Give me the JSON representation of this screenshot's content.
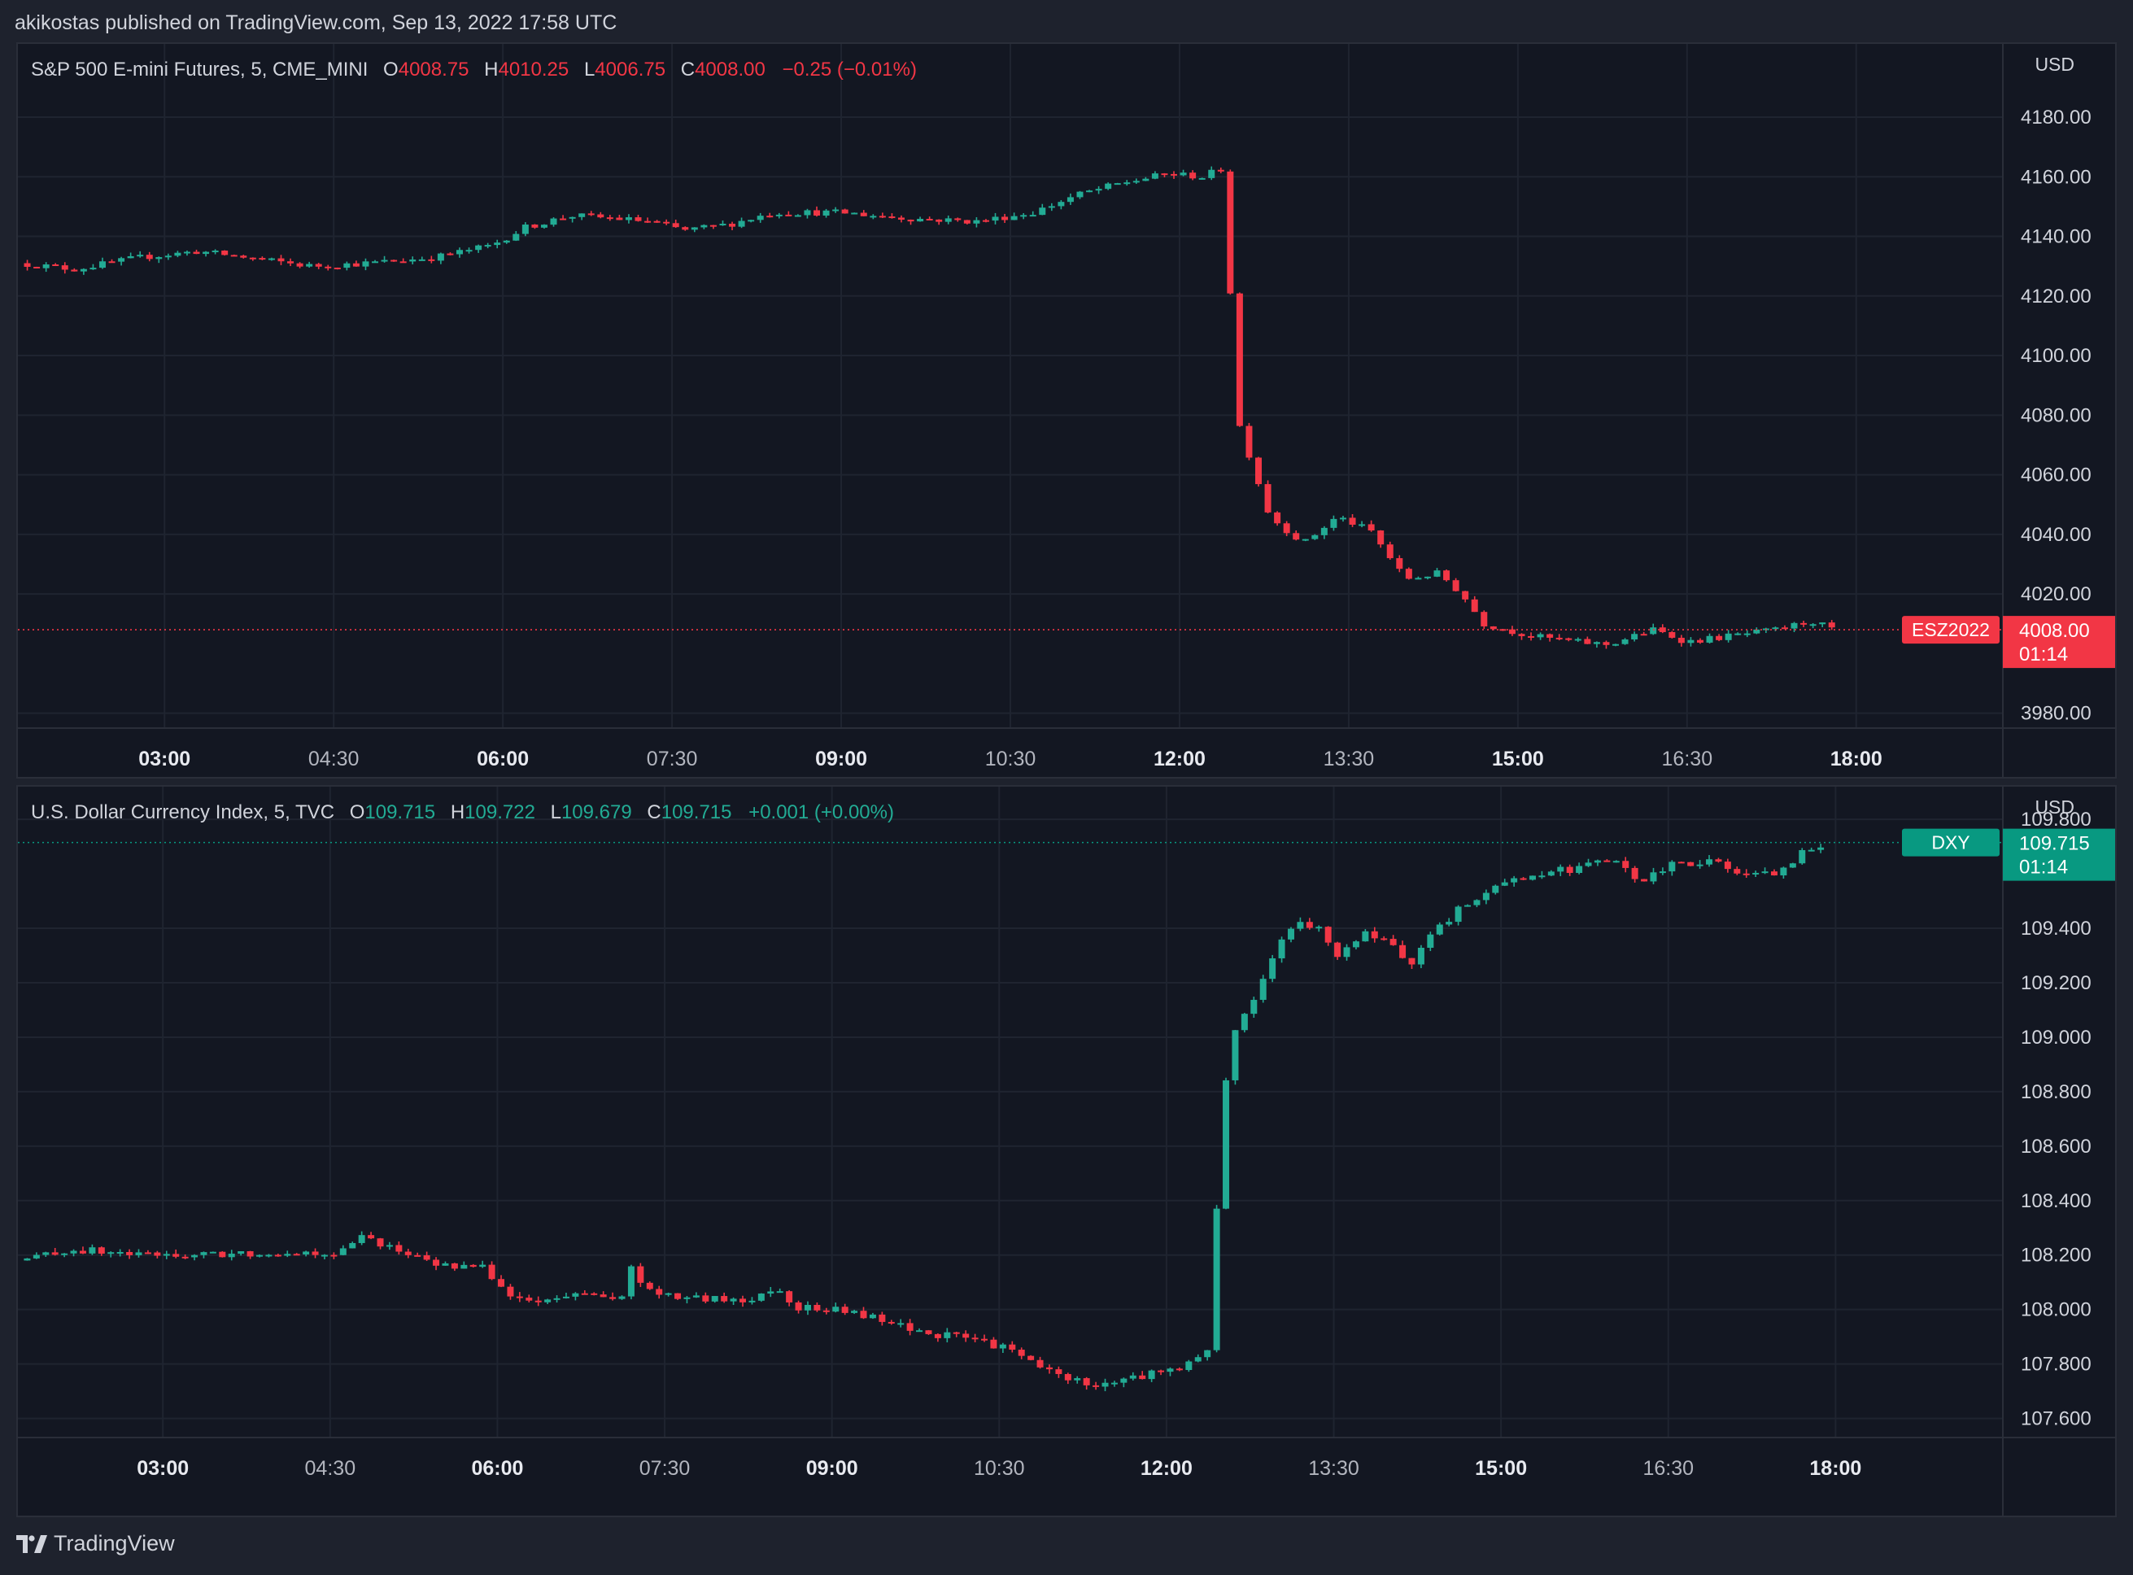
{
  "header": {
    "published": "akikostas published on TradingView.com, Sep 13, 2022 17:58 UTC"
  },
  "footer": {
    "brand": "TradingView"
  },
  "colors": {
    "up": "#22ab94",
    "down": "#f23645",
    "background": "#131722",
    "grid": "#1f2430",
    "text": "#d1d4dc"
  },
  "chart_data": [
    {
      "type": "candlestick",
      "symbol_desc": "S&P 500 E-mini Futures, 5, CME_MINI",
      "ohlc": {
        "o_label": "O",
        "o": "4008.75",
        "h_label": "H",
        "h": "4010.25",
        "l_label": "L",
        "l": "4006.75",
        "c_label": "C",
        "c": "4008.00",
        "change": "−0.25 (−0.01%)",
        "direction": "down"
      },
      "currency": "USD",
      "ylim": [
        3975,
        4186
      ],
      "y_ticks": [
        "4180.00",
        "4160.00",
        "4140.00",
        "4120.00",
        "4100.00",
        "4080.00",
        "4060.00",
        "4040.00",
        "4020.00",
        "3980.00"
      ],
      "x_ticks": [
        {
          "label": "03:00",
          "bold": true
        },
        {
          "label": "04:30",
          "bold": false
        },
        {
          "label": "06:00",
          "bold": true
        },
        {
          "label": "07:30",
          "bold": false
        },
        {
          "label": "09:00",
          "bold": true
        },
        {
          "label": "10:30",
          "bold": false
        },
        {
          "label": "12:00",
          "bold": true
        },
        {
          "label": "13:30",
          "bold": false
        },
        {
          "label": "15:00",
          "bold": true
        },
        {
          "label": "16:30",
          "bold": false
        },
        {
          "label": "18:00",
          "bold": true
        }
      ],
      "time_range_hours": [
        1.7,
        19.3
      ],
      "last_price": "4008.00",
      "last_price_value": 4008,
      "countdown": "01:14",
      "ticker_tag": "ESZ2022",
      "tag_color": "#f23645",
      "anchors": [
        [
          1.7,
          4131
        ],
        [
          2.2,
          4129
        ],
        [
          2.8,
          4133
        ],
        [
          3.3,
          4135
        ],
        [
          3.9,
          4132
        ],
        [
          4.3,
          4130
        ],
        [
          4.8,
          4131
        ],
        [
          5.4,
          4133
        ],
        [
          5.9,
          4137
        ],
        [
          6.2,
          4143
        ],
        [
          6.6,
          4147
        ],
        [
          7.0,
          4146
        ],
        [
          7.3,
          4145
        ],
        [
          7.6,
          4142
        ],
        [
          8.0,
          4144
        ],
        [
          8.4,
          4148
        ],
        [
          9.0,
          4148
        ],
        [
          9.6,
          4146
        ],
        [
          10.2,
          4145
        ],
        [
          10.7,
          4148
        ],
        [
          11.1,
          4154
        ],
        [
          11.5,
          4158
        ],
        [
          11.9,
          4161
        ],
        [
          12.2,
          4160
        ],
        [
          12.4,
          4163
        ],
        [
          12.5,
          4080
        ],
        [
          12.65,
          4063
        ],
        [
          12.8,
          4046
        ],
        [
          13.1,
          4037
        ],
        [
          13.4,
          4046
        ],
        [
          13.7,
          4041
        ],
        [
          14.0,
          4025
        ],
        [
          14.3,
          4027
        ],
        [
          14.5,
          4020
        ],
        [
          14.7,
          4010
        ],
        [
          15.1,
          4006
        ],
        [
          15.5,
          4004
        ],
        [
          15.8,
          4003
        ],
        [
          16.2,
          4008
        ],
        [
          16.5,
          4004
        ],
        [
          16.9,
          4006
        ],
        [
          17.3,
          4008
        ],
        [
          17.6,
          4011
        ],
        [
          17.8,
          4008
        ]
      ]
    },
    {
      "type": "candlestick",
      "symbol_desc": "U.S. Dollar Currency Index, 5, TVC",
      "ohlc": {
        "o_label": "O",
        "o": "109.715",
        "h_label": "H",
        "h": "109.722",
        "l_label": "L",
        "l": "109.679",
        "c_label": "C",
        "c": "109.715",
        "change": "+0.001 (+0.00%)",
        "direction": "up"
      },
      "currency": "USD",
      "ylim": [
        107.53,
        109.92
      ],
      "y_ticks": [
        "109.800",
        "109.400",
        "109.200",
        "109.000",
        "108.800",
        "108.600",
        "108.400",
        "108.200",
        "108.000",
        "107.800",
        "107.600"
      ],
      "x_ticks": [
        {
          "label": "03:00",
          "bold": true
        },
        {
          "label": "04:30",
          "bold": false
        },
        {
          "label": "06:00",
          "bold": true
        },
        {
          "label": "07:30",
          "bold": false
        },
        {
          "label": "09:00",
          "bold": true
        },
        {
          "label": "10:30",
          "bold": false
        },
        {
          "label": "12:00",
          "bold": true
        },
        {
          "label": "13:30",
          "bold": false
        },
        {
          "label": "15:00",
          "bold": true
        },
        {
          "label": "16:30",
          "bold": false
        },
        {
          "label": "18:00",
          "bold": true
        }
      ],
      "time_range_hours": [
        1.7,
        19.5
      ],
      "last_price": "109.715",
      "last_price_value": 109.715,
      "countdown": "01:14",
      "ticker_tag": "DXY",
      "tag_color": "#089981",
      "anchors": [
        [
          1.7,
          108.18
        ],
        [
          2.2,
          108.22
        ],
        [
          2.8,
          108.2
        ],
        [
          3.4,
          108.2
        ],
        [
          4.0,
          108.21
        ],
        [
          4.6,
          108.21
        ],
        [
          4.8,
          108.27
        ],
        [
          5.1,
          108.22
        ],
        [
          5.4,
          108.17
        ],
        [
          5.9,
          108.15
        ],
        [
          6.1,
          108.05
        ],
        [
          6.4,
          108.02
        ],
        [
          6.8,
          108.07
        ],
        [
          7.1,
          108.02
        ],
        [
          7.2,
          108.15
        ],
        [
          7.4,
          108.05
        ],
        [
          7.8,
          108.04
        ],
        [
          8.2,
          108.03
        ],
        [
          8.5,
          108.08
        ],
        [
          8.7,
          108.01
        ],
        [
          9.2,
          107.99
        ],
        [
          9.5,
          107.95
        ],
        [
          9.9,
          107.91
        ],
        [
          10.3,
          107.89
        ],
        [
          10.6,
          107.85
        ],
        [
          11.0,
          107.76
        ],
        [
          11.4,
          107.72
        ],
        [
          11.8,
          107.76
        ],
        [
          12.2,
          107.8
        ],
        [
          12.38,
          107.85
        ],
        [
          12.5,
          108.75
        ],
        [
          12.6,
          109.02
        ],
        [
          12.8,
          109.15
        ],
        [
          12.95,
          109.3
        ],
        [
          13.15,
          109.42
        ],
        [
          13.35,
          109.4
        ],
        [
          13.55,
          109.3
        ],
        [
          13.75,
          109.38
        ],
        [
          13.95,
          109.35
        ],
        [
          14.2,
          109.28
        ],
        [
          14.4,
          109.38
        ],
        [
          14.65,
          109.48
        ],
        [
          14.9,
          109.55
        ],
        [
          15.3,
          109.6
        ],
        [
          15.7,
          109.62
        ],
        [
          16.0,
          109.65
        ],
        [
          16.25,
          109.57
        ],
        [
          16.5,
          109.63
        ],
        [
          16.9,
          109.65
        ],
        [
          17.2,
          109.59
        ],
        [
          17.5,
          109.6
        ],
        [
          17.7,
          109.68
        ],
        [
          17.9,
          109.71
        ]
      ]
    }
  ]
}
